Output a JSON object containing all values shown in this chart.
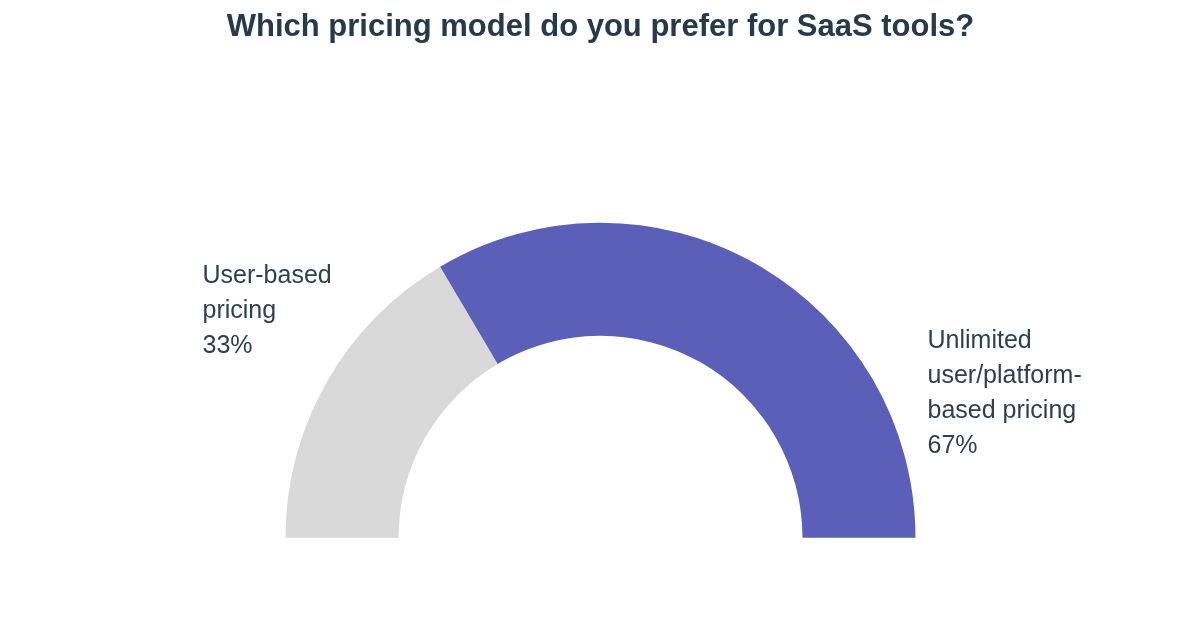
{
  "chart_data": {
    "type": "donut",
    "title": "Which pricing model do you prefer for SaaS tools?",
    "categories": [
      "User-based pricing",
      "Unlimited user/platform-based pricing"
    ],
    "values": [
      33,
      67
    ],
    "colors": [
      "#d9d9d9",
      "#5c5fb7"
    ],
    "value_labels": [
      "33%",
      "67%"
    ],
    "legend": false
  }
}
